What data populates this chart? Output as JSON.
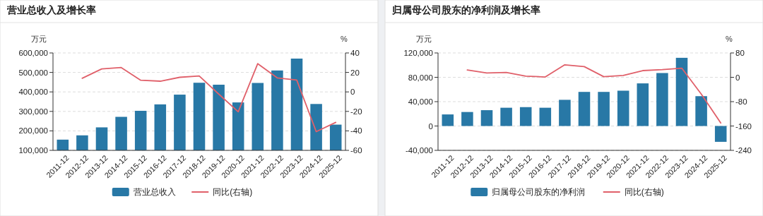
{
  "chart_data": [
    {
      "type": "bar",
      "title": "营业总收入及增长率",
      "ylabel": "万元",
      "y2label": "%",
      "categories": [
        "2011-12",
        "2012-12",
        "2013-12",
        "2014-12",
        "2015-12",
        "2016-12",
        "2017-12",
        "2018-12",
        "2019-12",
        "2020-12",
        "2021-12",
        "2022-12",
        "2023-12",
        "2024-12",
        "2025-12"
      ],
      "series": [
        {
          "name": "营业总收入",
          "color": "#2878a6",
          "values": [
            155000,
            177000,
            218000,
            272000,
            303000,
            336000,
            386000,
            447000,
            437000,
            346000,
            446000,
            510000,
            571000,
            338000,
            232000
          ]
        },
        {
          "name": "同比(右轴)",
          "type": "line",
          "axis": "y2",
          "color": "#e0606a",
          "values": [
            null,
            14,
            23.6,
            25,
            12,
            11,
            15,
            16.4,
            -2.2,
            -20.4,
            29,
            14.4,
            12.2,
            -40.8,
            -31.3
          ]
        }
      ],
      "ylim": [
        100000,
        600000
      ],
      "yticks": [
        {
          "value": 100000,
          "label": "100,000"
        },
        {
          "value": 200000,
          "label": "200,000"
        },
        {
          "value": 300000,
          "label": "300,000"
        },
        {
          "value": 400000,
          "label": "400,000"
        },
        {
          "value": 500000,
          "label": "500,000"
        },
        {
          "value": 600000,
          "label": "600,000"
        }
      ],
      "y2lim": [
        -60,
        40
      ],
      "y2ticks": [
        -60,
        -40,
        -20,
        0,
        20,
        40
      ],
      "grid": "y",
      "legend": "bottom"
    },
    {
      "type": "bar",
      "title": "归属母公司股东的净利润及增长率",
      "ylabel": "万元",
      "y2label": "%",
      "categories": [
        "2011-12",
        "2012-12",
        "2013-12",
        "2014-12",
        "2015-12",
        "2016-12",
        "2017-12",
        "2018-12",
        "2019-12",
        "2020-12",
        "2021-12",
        "2022-12",
        "2023-12",
        "2024-12",
        "2025-12"
      ],
      "series": [
        {
          "name": "归属母公司股东的净利润",
          "color": "#2878a6",
          "values": [
            19000,
            23000,
            26000,
            30000,
            31000,
            30000,
            43000,
            56000,
            56000,
            58000,
            70000,
            87000,
            112000,
            49000,
            -26000
          ]
        },
        {
          "name": "同比(右轴)",
          "type": "line",
          "axis": "y2",
          "color": "#e0606a",
          "values": [
            null,
            24,
            14,
            16,
            4,
            1,
            41,
            35,
            2,
            6,
            22,
            25,
            30,
            -55,
            -150
          ]
        }
      ],
      "ylim": [
        -40000,
        120000
      ],
      "yticks": [
        {
          "value": -40000,
          "label": "-40,000"
        },
        {
          "value": 0,
          "label": "0"
        },
        {
          "value": 40000,
          "label": "40,000"
        },
        {
          "value": 80000,
          "label": "80,000"
        },
        {
          "value": 120000,
          "label": "120,000"
        }
      ],
      "y2lim": [
        -240,
        80
      ],
      "y2ticks": [
        -240,
        -160,
        -80,
        0,
        80
      ],
      "grid": "y",
      "legend": "bottom"
    }
  ]
}
